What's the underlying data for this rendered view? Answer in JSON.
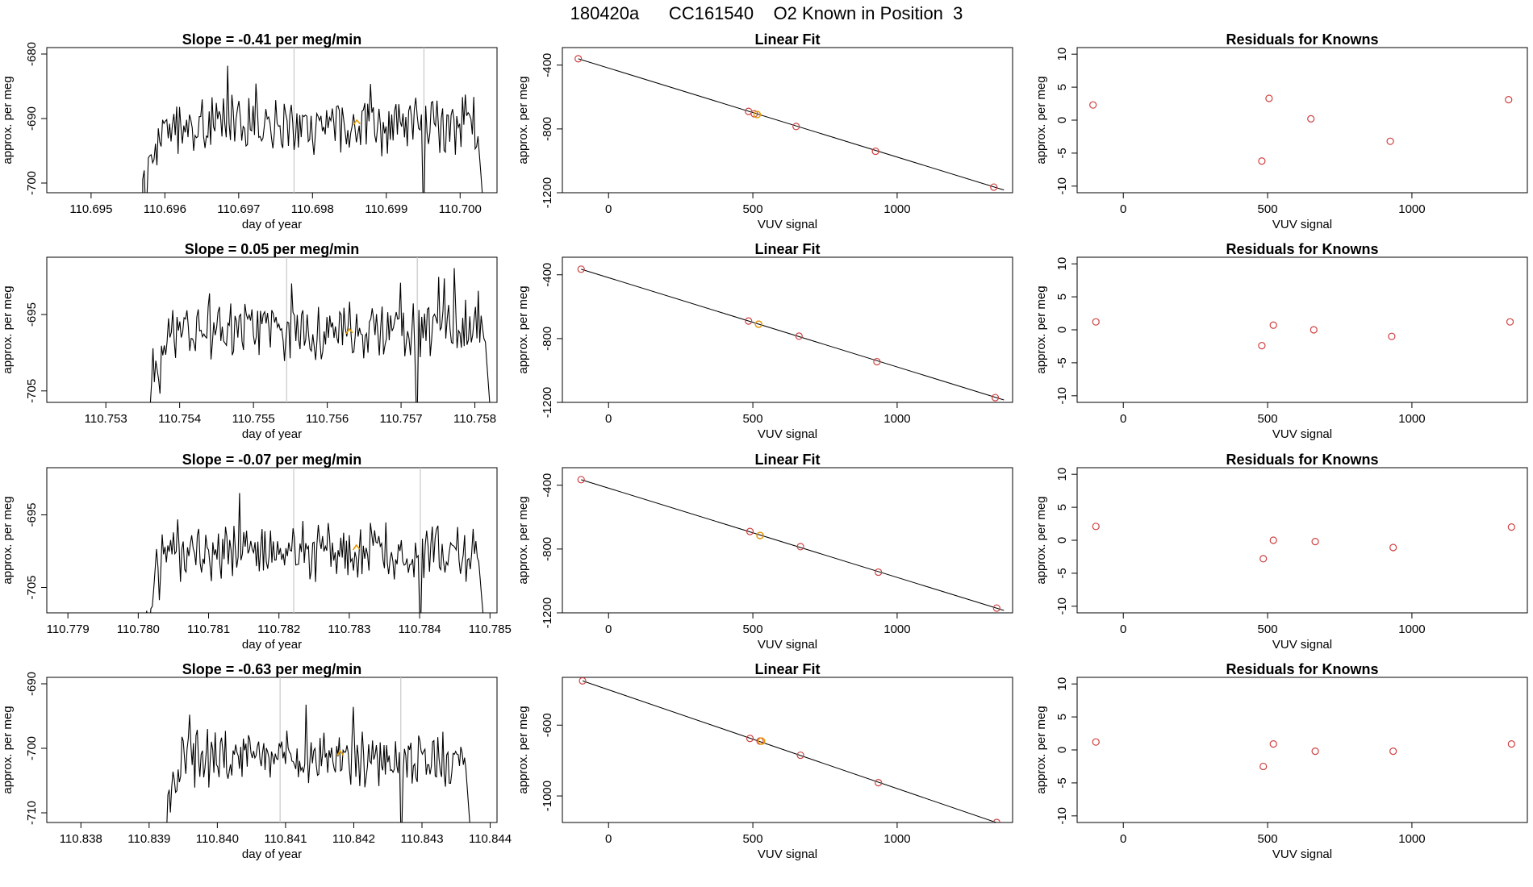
{
  "page": {
    "title": "180420a      CC161540    O2 Known in Position  3"
  },
  "colors": {
    "trace": "#000000",
    "points": "#d04040",
    "highlight": "#e69a00",
    "vlines": "#c8c8c8",
    "axis": "#000000"
  },
  "chart_data": [
    {
      "type": "line",
      "row": 0,
      "panel": "time",
      "title": "Slope =  -0.41  per meg/min",
      "xlabel": "day of year",
      "ylabel": "approx. per meg",
      "xlim": [
        110.6944,
        110.7005
      ],
      "ylim": [
        -701.5,
        -679
      ],
      "xticks": [
        110.695,
        110.696,
        110.697,
        110.698,
        110.699,
        110.7
      ],
      "xtick_labels": [
        "110.695",
        "110.696",
        "110.697",
        "110.698",
        "110.699",
        "110.700"
      ],
      "yticks": [
        -680,
        -690,
        -700
      ],
      "ytick_labels": [
        "-680",
        "-690",
        "-700"
      ],
      "vlines": [
        110.69775,
        110.69951
      ],
      "trace_start": 110.6957,
      "trace_end": 110.7003,
      "baseline_start": 110.6944,
      "baseline_end": 110.6957,
      "dip_low": -701.5,
      "level": -691,
      "amplitude": 3.5,
      "highlight_x": 110.6986,
      "highlight_y": -690.6
    },
    {
      "type": "scatter",
      "row": 0,
      "panel": "fit",
      "title": "Linear Fit",
      "xlabel": "VUV signal",
      "ylabel": "approx. per meg",
      "xlim": [
        -160,
        1400
      ],
      "ylim": [
        -1200,
        -290
      ],
      "xticks": [
        0,
        500,
        1000
      ],
      "xtick_labels": [
        "0",
        "500",
        "1000"
      ],
      "yticks": [
        -400,
        -800,
        -1200
      ],
      "ytick_labels": [
        "-400",
        "-800",
        "-1200"
      ],
      "points": [
        [
          -105,
          -360
        ],
        [
          485,
          -690
        ],
        [
          505,
          -705
        ],
        [
          650,
          -785
        ],
        [
          925,
          -940
        ],
        [
          1335,
          -1165
        ]
      ],
      "highlight": [
        [
          515,
          -710
        ]
      ],
      "line": [
        [
          -105,
          -360
        ],
        [
          1370,
          -1183
        ]
      ]
    },
    {
      "type": "scatter",
      "row": 0,
      "panel": "resid",
      "title": "Residuals for Knowns",
      "xlabel": "VUV signal",
      "ylabel": "approx. per meg",
      "xlim": [
        -160,
        1400
      ],
      "ylim": [
        -11,
        11
      ],
      "xticks": [
        0,
        500,
        1000
      ],
      "xtick_labels": [
        "0",
        "500",
        "1000"
      ],
      "yticks": [
        10,
        5,
        0,
        -5,
        -10
      ],
      "ytick_labels": [
        "10",
        "5",
        "0",
        "-5",
        "-10"
      ],
      "points": [
        [
          -105,
          2.3
        ],
        [
          480,
          -6.2
        ],
        [
          505,
          3.3
        ],
        [
          650,
          0.2
        ],
        [
          925,
          -3.2
        ],
        [
          1335,
          3.1
        ]
      ]
    },
    {
      "type": "line",
      "row": 1,
      "panel": "time",
      "title": "Slope =  0.05  per meg/min",
      "xlabel": "day of year",
      "ylabel": "approx. per meg",
      "xlim": [
        110.7522,
        110.7583
      ],
      "ylim": [
        -706.5,
        -687.5
      ],
      "xticks": [
        110.753,
        110.754,
        110.755,
        110.756,
        110.757,
        110.758
      ],
      "xtick_labels": [
        "110.753",
        "110.754",
        "110.755",
        "110.756",
        "110.757",
        "110.758"
      ],
      "yticks": [
        -695,
        -705
      ],
      "ytick_labels": [
        "-695",
        "-705"
      ],
      "vlines": [
        110.75545,
        110.75722
      ],
      "trace_start": 110.7536,
      "trace_end": 110.7582,
      "baseline_start": 110.7522,
      "baseline_end": 110.7536,
      "dip_low": -706.5,
      "level": -697,
      "amplitude": 3.0,
      "highlight_x": 110.7563,
      "highlight_y": -697.2
    },
    {
      "type": "scatter",
      "row": 1,
      "panel": "fit",
      "title": "Linear Fit",
      "xlabel": "VUV signal",
      "ylabel": "approx. per meg",
      "xlim": [
        -160,
        1400
      ],
      "ylim": [
        -1200,
        -290
      ],
      "xticks": [
        0,
        500,
        1000
      ],
      "xtick_labels": [
        "0",
        "500",
        "1000"
      ],
      "yticks": [
        -400,
        -800,
        -1200
      ],
      "ytick_labels": [
        "-400",
        "-800",
        "-1200"
      ],
      "points": [
        [
          -95,
          -365
        ],
        [
          485,
          -690
        ],
        [
          520,
          -710
        ],
        [
          660,
          -785
        ],
        [
          930,
          -945
        ],
        [
          1340,
          -1170
        ]
      ],
      "highlight": [
        [
          520,
          -710
        ]
      ],
      "line": [
        [
          -95,
          -365
        ],
        [
          1370,
          -1185
        ]
      ]
    },
    {
      "type": "scatter",
      "row": 1,
      "panel": "resid",
      "title": "Residuals for Knowns",
      "xlabel": "VUV signal",
      "ylabel": "approx. per meg",
      "xlim": [
        -160,
        1400
      ],
      "ylim": [
        -11,
        11
      ],
      "xticks": [
        0,
        500,
        1000
      ],
      "xtick_labels": [
        "0",
        "500",
        "1000"
      ],
      "yticks": [
        10,
        5,
        0,
        -5,
        -10
      ],
      "ytick_labels": [
        "10",
        "5",
        "0",
        "-5",
        "-10"
      ],
      "points": [
        [
          -95,
          1.2
        ],
        [
          480,
          -2.4
        ],
        [
          520,
          0.7
        ],
        [
          660,
          0.0
        ],
        [
          930,
          -1.0
        ],
        [
          1340,
          1.2
        ]
      ]
    },
    {
      "type": "line",
      "row": 2,
      "panel": "time",
      "title": "Slope =  -0.07  per meg/min",
      "xlabel": "day of year",
      "ylabel": "approx. per meg",
      "xlim": [
        110.7787,
        110.7851
      ],
      "ylim": [
        -708.5,
        -688.5
      ],
      "xticks": [
        110.779,
        110.78,
        110.781,
        110.782,
        110.783,
        110.784,
        110.785
      ],
      "xtick_labels": [
        "110.779",
        "110.780",
        "110.781",
        "110.782",
        "110.783",
        "110.784",
        "110.785"
      ],
      "yticks": [
        -695,
        -705
      ],
      "ytick_labels": [
        "-695",
        "-705"
      ],
      "vlines": [
        110.78221,
        110.78401
      ],
      "trace_start": 110.7801,
      "trace_end": 110.7849,
      "baseline_start": 110.7801,
      "baseline_end": 110.7801,
      "dip_low": -708.5,
      "level": -700,
      "amplitude": 3.2,
      "highlight_x": 110.7831,
      "highlight_y": -699.5
    },
    {
      "type": "scatter",
      "row": 2,
      "panel": "fit",
      "title": "Linear Fit",
      "xlabel": "VUV signal",
      "ylabel": "approx. per meg",
      "xlim": [
        -160,
        1400
      ],
      "ylim": [
        -1200,
        -290
      ],
      "xticks": [
        0,
        500,
        1000
      ],
      "xtick_labels": [
        "0",
        "500",
        "1000"
      ],
      "yticks": [
        -400,
        -800,
        -1200
      ],
      "ytick_labels": [
        "-400",
        "-800",
        "-1200"
      ],
      "points": [
        [
          -95,
          -365
        ],
        [
          490,
          -690
        ],
        [
          525,
          -715
        ],
        [
          665,
          -785
        ],
        [
          935,
          -945
        ],
        [
          1345,
          -1170
        ]
      ],
      "highlight": [
        [
          525,
          -715
        ]
      ],
      "line": [
        [
          -95,
          -365
        ],
        [
          1370,
          -1185
        ]
      ]
    },
    {
      "type": "scatter",
      "row": 2,
      "panel": "resid",
      "title": "Residuals for Knowns",
      "xlabel": "VUV signal",
      "ylabel": "approx. per meg",
      "xlim": [
        -160,
        1400
      ],
      "ylim": [
        -11,
        11
      ],
      "xticks": [
        0,
        500,
        1000
      ],
      "xtick_labels": [
        "0",
        "500",
        "1000"
      ],
      "yticks": [
        10,
        5,
        0,
        -5,
        -10
      ],
      "ytick_labels": [
        "10",
        "5",
        "0",
        "-5",
        "-10"
      ],
      "points": [
        [
          -95,
          2.1
        ],
        [
          485,
          -2.8
        ],
        [
          520,
          0.0
        ],
        [
          665,
          -0.2
        ],
        [
          935,
          -1.1
        ],
        [
          1345,
          2.0
        ]
      ]
    },
    {
      "type": "line",
      "row": 3,
      "panel": "time",
      "title": "Slope =  -0.63  per meg/min",
      "xlabel": "day of year",
      "ylabel": "approx. per meg",
      "xlim": [
        110.8375,
        110.8441
      ],
      "ylim": [
        -711.5,
        -689
      ],
      "xticks": [
        110.838,
        110.839,
        110.84,
        110.841,
        110.842,
        110.843,
        110.844
      ],
      "xtick_labels": [
        "110.838",
        "110.839",
        "110.840",
        "110.841",
        "110.842",
        "110.843",
        "110.844"
      ],
      "yticks": [
        -690,
        -700,
        -710
      ],
      "ytick_labels": [
        "-690",
        "-700",
        "-710"
      ],
      "vlines": [
        110.84092,
        110.84269
      ],
      "trace_start": 110.8392,
      "trace_end": 110.8437,
      "baseline_start": 110.8392,
      "baseline_end": 110.8392,
      "dip_low": -711.5,
      "level": -701.5,
      "amplitude": 3.3,
      "highlight_x": 110.8418,
      "highlight_y": -700.8
    },
    {
      "type": "scatter",
      "row": 3,
      "panel": "fit",
      "title": "Linear Fit",
      "xlabel": "VUV signal",
      "ylabel": "approx. per meg",
      "xlim": [
        -160,
        1400
      ],
      "ylim": [
        -1150,
        -330
      ],
      "xticks": [
        0,
        500,
        1000
      ],
      "xtick_labels": [
        "0",
        "500",
        "1000"
      ],
      "yticks": [
        -600,
        -1000
      ],
      "ytick_labels": [
        "-600",
        "-1000"
      ],
      "points": [
        [
          -90,
          -350
        ],
        [
          490,
          -675
        ],
        [
          525,
          -690
        ],
        [
          665,
          -770
        ],
        [
          935,
          -925
        ],
        [
          1345,
          -1150
        ]
      ],
      "highlight": [
        [
          530,
          -690
        ]
      ],
      "line": [
        [
          -90,
          -350
        ],
        [
          1370,
          -1165
        ]
      ]
    },
    {
      "type": "scatter",
      "row": 3,
      "panel": "resid",
      "title": "Residuals for Knowns",
      "xlabel": "VUV signal",
      "ylabel": "approx. per meg",
      "xlim": [
        -160,
        1400
      ],
      "ylim": [
        -11,
        11
      ],
      "xticks": [
        0,
        500,
        1000
      ],
      "xtick_labels": [
        "0",
        "500",
        "1000"
      ],
      "yticks": [
        10,
        5,
        0,
        -5,
        -10
      ],
      "ytick_labels": [
        "10",
        "5",
        "0",
        "-5",
        "-10"
      ],
      "points": [
        [
          -95,
          1.2
        ],
        [
          485,
          -2.5
        ],
        [
          520,
          0.9
        ],
        [
          665,
          -0.2
        ],
        [
          935,
          -0.2
        ],
        [
          1345,
          0.9
        ]
      ]
    }
  ]
}
